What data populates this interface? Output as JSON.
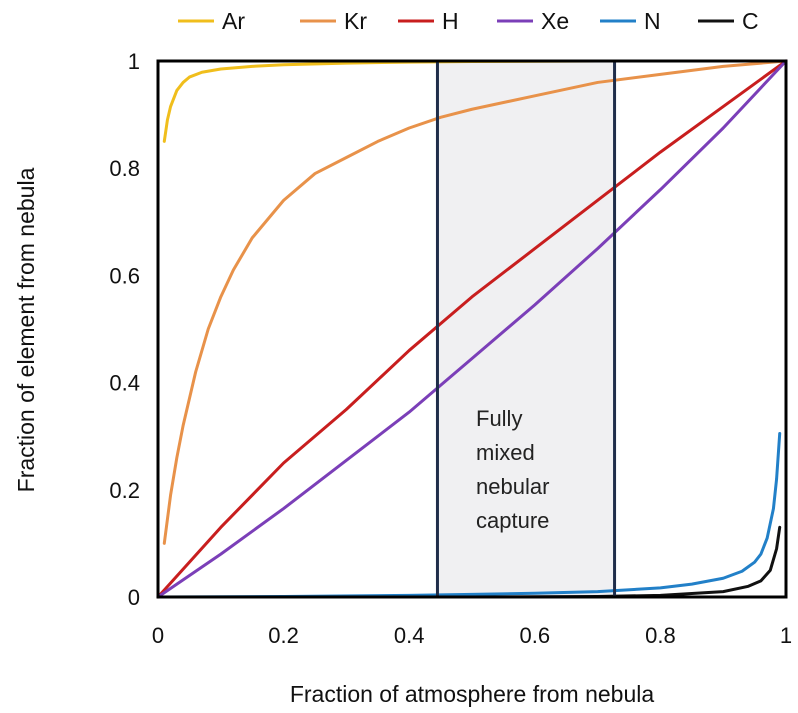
{
  "chart_data": {
    "type": "line",
    "title": "",
    "xlabel": "Fraction of atmosphere from nebula",
    "ylabel": "Fraction of element from nebula",
    "xlim": [
      0,
      1
    ],
    "ylim": [
      0,
      1
    ],
    "x_ticks": [
      "0",
      "0.2",
      "0.4",
      "0.6",
      "0.8",
      "1"
    ],
    "y_ticks": [
      "0",
      "0.2",
      "0.4",
      "0.6",
      "0.8",
      "1"
    ],
    "grid": false,
    "legend_position": "top",
    "shaded_region": {
      "x_range": [
        0.445,
        0.727
      ],
      "annotation": [
        "Fully",
        "mixed",
        "nebular",
        "capture"
      ],
      "fill_color": "#f0f0f2",
      "border_color": "#1f2d4a"
    },
    "series": [
      {
        "name": "Ar",
        "color": "#f0be1c",
        "points": [
          [
            0.01,
            0.85
          ],
          [
            0.015,
            0.89
          ],
          [
            0.02,
            0.915
          ],
          [
            0.03,
            0.945
          ],
          [
            0.04,
            0.96
          ],
          [
            0.05,
            0.97
          ],
          [
            0.07,
            0.979
          ],
          [
            0.1,
            0.985
          ],
          [
            0.15,
            0.99
          ],
          [
            0.2,
            0.993
          ],
          [
            0.3,
            0.996
          ],
          [
            0.4,
            0.998
          ],
          [
            0.5,
            0.999
          ],
          [
            0.7,
            1.0
          ],
          [
            1.0,
            1.0
          ]
        ]
      },
      {
        "name": "Kr",
        "color": "#e8924a",
        "points": [
          [
            0.01,
            0.1
          ],
          [
            0.02,
            0.19
          ],
          [
            0.03,
            0.26
          ],
          [
            0.04,
            0.32
          ],
          [
            0.06,
            0.42
          ],
          [
            0.08,
            0.5
          ],
          [
            0.1,
            0.56
          ],
          [
            0.12,
            0.61
          ],
          [
            0.15,
            0.67
          ],
          [
            0.2,
            0.74
          ],
          [
            0.25,
            0.79
          ],
          [
            0.3,
            0.82
          ],
          [
            0.35,
            0.85
          ],
          [
            0.4,
            0.875
          ],
          [
            0.45,
            0.895
          ],
          [
            0.5,
            0.91
          ],
          [
            0.6,
            0.935
          ],
          [
            0.7,
            0.96
          ],
          [
            0.8,
            0.975
          ],
          [
            0.9,
            0.99
          ],
          [
            1.0,
            1.0
          ]
        ]
      },
      {
        "name": "H",
        "color": "#c81e1e",
        "points": [
          [
            0.0,
            0.0
          ],
          [
            0.1,
            0.13
          ],
          [
            0.2,
            0.25
          ],
          [
            0.3,
            0.35
          ],
          [
            0.4,
            0.46
          ],
          [
            0.5,
            0.56
          ],
          [
            0.6,
            0.65
          ],
          [
            0.7,
            0.74
          ],
          [
            0.8,
            0.83
          ],
          [
            0.9,
            0.915
          ],
          [
            1.0,
            1.0
          ]
        ]
      },
      {
        "name": "Xe",
        "color": "#7b3fb8",
        "points": [
          [
            0.0,
            0.0
          ],
          [
            0.1,
            0.08
          ],
          [
            0.2,
            0.165
          ],
          [
            0.3,
            0.255
          ],
          [
            0.4,
            0.345
          ],
          [
            0.5,
            0.445
          ],
          [
            0.6,
            0.545
          ],
          [
            0.7,
            0.65
          ],
          [
            0.8,
            0.76
          ],
          [
            0.9,
            0.875
          ],
          [
            1.0,
            1.0
          ]
        ]
      },
      {
        "name": "N",
        "color": "#2280c8",
        "points": [
          [
            0.0,
            0.0
          ],
          [
            0.2,
            0.001
          ],
          [
            0.4,
            0.003
          ],
          [
            0.5,
            0.005
          ],
          [
            0.6,
            0.007
          ],
          [
            0.7,
            0.01
          ],
          [
            0.8,
            0.017
          ],
          [
            0.85,
            0.024
          ],
          [
            0.9,
            0.035
          ],
          [
            0.93,
            0.048
          ],
          [
            0.95,
            0.065
          ],
          [
            0.96,
            0.08
          ],
          [
            0.97,
            0.11
          ],
          [
            0.98,
            0.165
          ],
          [
            0.985,
            0.22
          ],
          [
            0.99,
            0.305
          ]
        ]
      },
      {
        "name": "C",
        "color": "#111111",
        "points": [
          [
            0.0,
            0.0
          ],
          [
            0.5,
            0.0
          ],
          [
            0.7,
            0.001
          ],
          [
            0.8,
            0.003
          ],
          [
            0.9,
            0.01
          ],
          [
            0.94,
            0.02
          ],
          [
            0.96,
            0.03
          ],
          [
            0.975,
            0.05
          ],
          [
            0.985,
            0.09
          ],
          [
            0.99,
            0.13
          ]
        ]
      }
    ]
  }
}
